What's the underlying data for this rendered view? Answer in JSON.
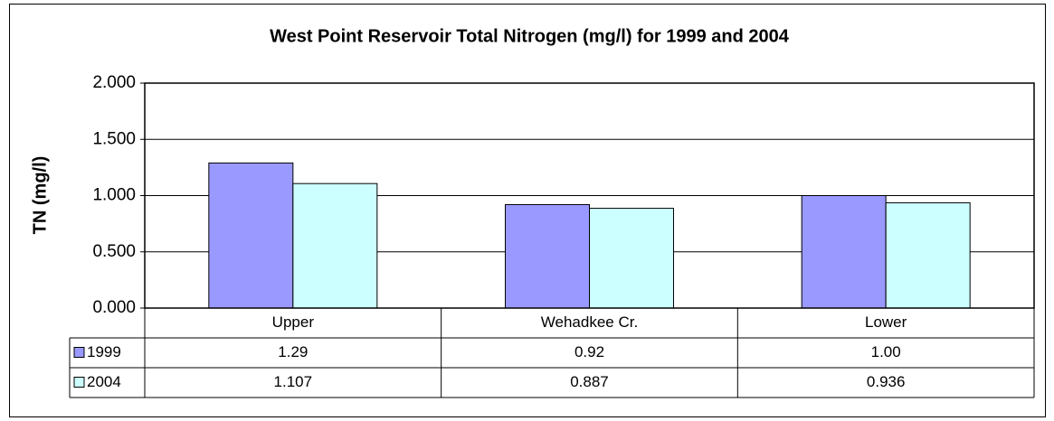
{
  "chart_data": {
    "type": "bar",
    "title": "West Point Reservoir Total Nitrogen (mg/l) for 1999 and 2004",
    "y_label": "TN (mg/l)",
    "categories": [
      "Upper",
      "Wehadkee Cr.",
      "Lower"
    ],
    "series": [
      {
        "name": "1999",
        "color": "#9999ff",
        "values": [
          1.29,
          0.92,
          1.0
        ],
        "value_labels": [
          "1.29",
          "0.92",
          "1.00"
        ]
      },
      {
        "name": "2004",
        "color": "#ccffff",
        "values": [
          1.107,
          0.887,
          0.936
        ],
        "value_labels": [
          "1.107",
          "0.887",
          "0.936"
        ]
      }
    ],
    "ylim": [
      0,
      2
    ],
    "yticks": [
      {
        "value": 0,
        "label": "0.000"
      },
      {
        "value": 0.5,
        "label": "0.500"
      },
      {
        "value": 1,
        "label": "1.000"
      },
      {
        "value": 1.5,
        "label": "1.500"
      },
      {
        "value": 2,
        "label": "2.000"
      }
    ],
    "grid": true
  }
}
